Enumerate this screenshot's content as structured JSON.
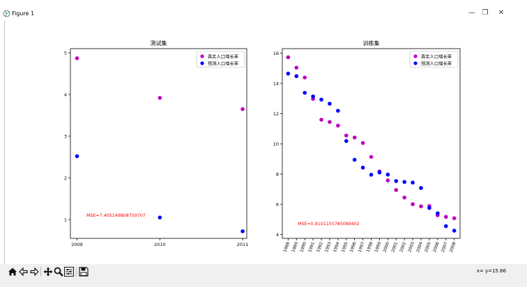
{
  "window": {
    "title": "Figure 1",
    "controls": {
      "minimize": "—",
      "restore": "❐",
      "close": "✕"
    }
  },
  "status": {
    "coordinate_readout": "x= y=15.66"
  },
  "colors": {
    "true": "#bf00bf",
    "pred": "#0000ff",
    "mse": "#ff0000"
  },
  "chart_data": [
    {
      "type": "scatter",
      "title": "测试集",
      "xlabel": "",
      "ylabel": "",
      "x": [
        2009,
        2010,
        2011
      ],
      "xlim": [
        2008.92,
        2011.05
      ],
      "ylim": [
        0.55,
        5.1
      ],
      "yticks": [
        1,
        2,
        3,
        4,
        5
      ],
      "xticks": [
        "2009",
        "2010",
        "2011"
      ],
      "legend_position": "top-right",
      "series": [
        {
          "name": "真实人口增长率",
          "values": [
            4.87,
            3.92,
            3.65
          ]
        },
        {
          "name": "预测人口增长率",
          "values": [
            2.52,
            1.05,
            0.72
          ]
        }
      ],
      "annotation": "MSE=7.405149808759707"
    },
    {
      "type": "scatter",
      "title": "训练集",
      "xlabel": "",
      "ylabel": "",
      "x": [
        1988,
        1989,
        1990,
        1991,
        1992,
        1993,
        1994,
        1995,
        1996,
        1997,
        1998,
        1999,
        2000,
        2001,
        2002,
        2003,
        2004,
        2005,
        2006,
        2007,
        2008
      ],
      "xlim": [
        1987.3,
        2008.7
      ],
      "ylim": [
        3.75,
        16.3
      ],
      "yticks": [
        4,
        6,
        8,
        10,
        12,
        14,
        16
      ],
      "xticks": [
        "1988",
        "1989",
        "1990",
        "1991",
        "1992",
        "1993",
        "1994",
        "1995",
        "1996",
        "1997",
        "1998",
        "1999",
        "2000",
        "2001",
        "2002",
        "2003",
        "2004",
        "2005",
        "2006",
        "2007",
        "2008"
      ],
      "legend_position": "top-right",
      "series": [
        {
          "name": "真实人口增长率",
          "values": [
            15.73,
            15.04,
            14.39,
            12.98,
            11.6,
            11.45,
            11.21,
            10.55,
            10.42,
            10.06,
            9.14,
            8.18,
            7.58,
            6.95,
            6.45,
            6.01,
            5.87,
            5.89,
            5.28,
            5.17,
            5.08
          ]
        },
        {
          "name": "预测人口增长率",
          "values": [
            14.65,
            14.48,
            13.38,
            13.14,
            12.93,
            12.66,
            12.19,
            10.19,
            8.95,
            8.43,
            7.96,
            8.11,
            7.97,
            7.54,
            7.48,
            7.44,
            7.08,
            5.76,
            5.41,
            4.56,
            4.26
          ]
        }
      ],
      "annotation": "MSE=0.9101155785089402"
    }
  ]
}
